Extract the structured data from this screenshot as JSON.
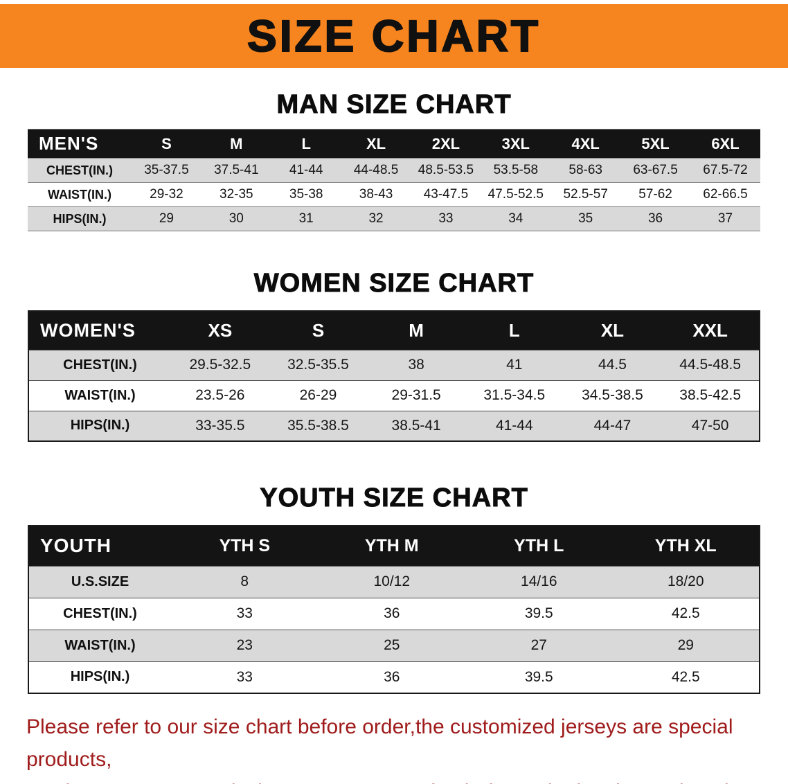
{
  "banner": {
    "title": "SIZE CHART"
  },
  "colors": {
    "banner_bg": "#F6851F",
    "table_header_bg": "#141414",
    "shaded_row_bg": "#D9D9D9",
    "footer_text": "#A01C1C"
  },
  "sections": [
    {
      "id": "men",
      "title": "MAN SIZE CHART",
      "table": {
        "corner_label": "MEN'S",
        "columns": [
          "S",
          "M",
          "L",
          "XL",
          "2XL",
          "3XL",
          "4XL",
          "5XL",
          "6XL"
        ],
        "rows": [
          {
            "label": "CHEST(IN.)",
            "values": [
              "35-37.5",
              "37.5-41",
              "41-44",
              "44-48.5",
              "48.5-53.5",
              "53.5-58",
              "58-63",
              "63-67.5",
              "67.5-72"
            ]
          },
          {
            "label": "WAIST(IN.)",
            "values": [
              "29-32",
              "32-35",
              "35-38",
              "38-43",
              "43-47.5",
              "47.5-52.5",
              "52.5-57",
              "57-62",
              "62-66.5"
            ]
          },
          {
            "label": "HIPS(IN.)",
            "values": [
              "29",
              "30",
              "31",
              "32",
              "33",
              "34",
              "35",
              "36",
              "37"
            ]
          }
        ]
      }
    },
    {
      "id": "women",
      "title": "WOMEN SIZE CHART",
      "table": {
        "corner_label": "WOMEN'S",
        "columns": [
          "XS",
          "S",
          "M",
          "L",
          "XL",
          "XXL"
        ],
        "rows": [
          {
            "label": "CHEST(IN.)",
            "values": [
              "29.5-32.5",
              "32.5-35.5",
              "38",
              "41",
              "44.5",
              "44.5-48.5"
            ]
          },
          {
            "label": "WAIST(IN.)",
            "values": [
              "23.5-26",
              "26-29",
              "29-31.5",
              "31.5-34.5",
              "34.5-38.5",
              "38.5-42.5"
            ]
          },
          {
            "label": "HIPS(IN.)",
            "values": [
              "33-35.5",
              "35.5-38.5",
              "38.5-41",
              "41-44",
              "44-47",
              "47-50"
            ]
          }
        ]
      }
    },
    {
      "id": "youth",
      "title": "YOUTH SIZE CHART",
      "table": {
        "corner_label": "YOUTH",
        "columns": [
          "YTH S",
          "YTH M",
          "YTH L",
          "YTH XL"
        ],
        "rows": [
          {
            "label": "U.S.SIZE",
            "values": [
              "8",
              "10/12",
              "14/16",
              "18/20"
            ]
          },
          {
            "label": "CHEST(IN.)",
            "values": [
              "33",
              "36",
              "39.5",
              "42.5"
            ]
          },
          {
            "label": "WAIST(IN.)",
            "values": [
              "23",
              "25",
              "27",
              "29"
            ]
          },
          {
            "label": "HIPS(IN.)",
            "values": [
              "33",
              "36",
              "39.5",
              "42.5"
            ]
          }
        ]
      }
    }
  ],
  "footer": {
    "lines": [
      "Please refer to our size chart before order,the customized jerseys are special products,",
      "we don't accept cancel, change, teturn or refund after order has been placed!"
    ]
  }
}
